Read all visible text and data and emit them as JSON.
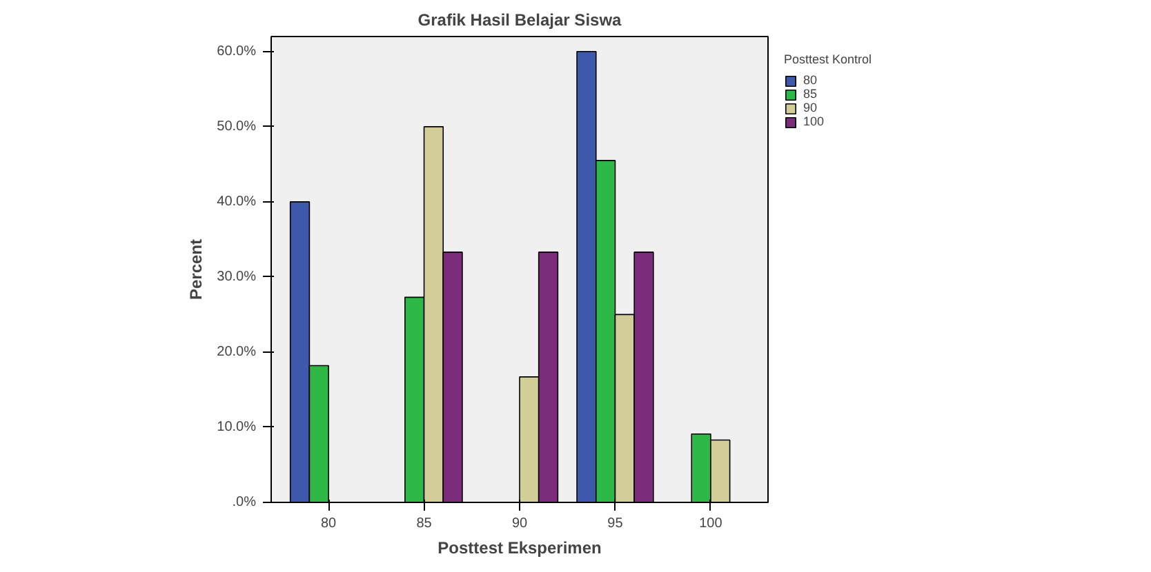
{
  "chart_data": {
    "type": "bar",
    "title": "Grafik Hasil Belajar Siswa",
    "xlabel": "Posttest Eksperimen",
    "ylabel": "Percent",
    "legend_title": "Posttest Kontrol",
    "categories": [
      "80",
      "85",
      "90",
      "95",
      "100"
    ],
    "series": [
      {
        "name": "80",
        "color": "#3e58ac",
        "values": [
          40,
          null,
          null,
          60,
          null
        ]
      },
      {
        "name": "85",
        "color": "#2eb848",
        "values": [
          18.2,
          27.3,
          null,
          45.5,
          9.1
        ]
      },
      {
        "name": "90",
        "color": "#d3ce97",
        "values": [
          null,
          50,
          16.7,
          25,
          8.3
        ]
      },
      {
        "name": "100",
        "color": "#7b2c7a",
        "values": [
          null,
          33.3,
          33.3,
          33.3,
          null
        ]
      }
    ],
    "ylim": [
      0,
      62
    ],
    "yticks": [
      {
        "value": 0,
        "label": ".0%"
      },
      {
        "value": 10,
        "label": "10.0%"
      },
      {
        "value": 20,
        "label": "20.0%"
      },
      {
        "value": 30,
        "label": "30.0%"
      },
      {
        "value": 40,
        "label": "40.0%"
      },
      {
        "value": 50,
        "label": "50.0%"
      },
      {
        "value": 60,
        "label": "60.0%"
      }
    ],
    "grid": false,
    "legend": "top right"
  }
}
